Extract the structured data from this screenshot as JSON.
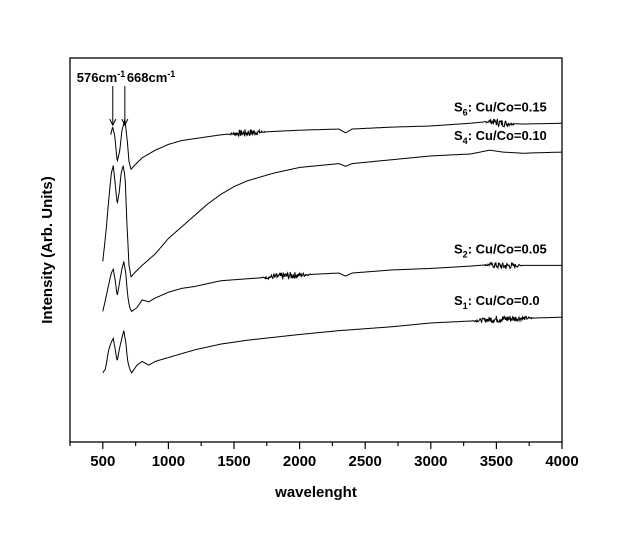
{
  "chart_data": {
    "type": "line",
    "title": "",
    "xlabel": "wavelenght",
    "ylabel": "Intensity (Arb. Units)",
    "xlim": [
      250,
      4000
    ],
    "ylim": [
      0,
      1
    ],
    "x_ticks": [
      500,
      1000,
      1500,
      2000,
      2500,
      3000,
      3500,
      4000
    ],
    "x_tick_labels": [
      "500",
      "1000",
      "1500",
      "2000",
      "2500",
      "3000",
      "3500",
      "4000"
    ],
    "y_ticks_visible": false,
    "grid": false,
    "annotations": [
      {
        "id": "peak1",
        "text": "576cm",
        "sup": "-1",
        "x": 576
      },
      {
        "id": "peak2",
        "text": "668cm",
        "sup": "-1",
        "x": 668
      }
    ],
    "series": [
      {
        "name": "S6: Cu/Co=0.15",
        "label_main": "S",
        "label_sub": "6",
        "label_rest": ": Cu/Co=0.15",
        "points": [
          [
            560,
            0.8
          ],
          [
            575,
            0.82
          ],
          [
            590,
            0.8
          ],
          [
            610,
            0.73
          ],
          [
            630,
            0.76
          ],
          [
            645,
            0.81
          ],
          [
            668,
            0.84
          ],
          [
            685,
            0.79
          ],
          [
            700,
            0.73
          ],
          [
            715,
            0.71
          ],
          [
            740,
            0.72
          ],
          [
            800,
            0.74
          ],
          [
            900,
            0.76
          ],
          [
            1000,
            0.775
          ],
          [
            1100,
            0.785
          ],
          [
            1200,
            0.79
          ],
          [
            1300,
            0.795
          ],
          [
            1400,
            0.8
          ],
          [
            1500,
            0.803
          ],
          [
            1700,
            0.807
          ],
          [
            2000,
            0.812
          ],
          [
            2300,
            0.815
          ],
          [
            2350,
            0.805
          ],
          [
            2400,
            0.815
          ],
          [
            2700,
            0.82
          ],
          [
            3000,
            0.823
          ],
          [
            3300,
            0.83
          ],
          [
            3450,
            0.835
          ],
          [
            3550,
            0.83
          ],
          [
            3700,
            0.828
          ],
          [
            4000,
            0.83
          ]
        ],
        "noise": [
          [
            1450,
            1750
          ],
          [
            3400,
            3650
          ]
        ]
      },
      {
        "name": "S4: Cu/Co=0.10",
        "label_main": "S",
        "label_sub": "4",
        "label_rest": ": Cu/Co=0.10",
        "points": [
          [
            500,
            0.47
          ],
          [
            525,
            0.55
          ],
          [
            545,
            0.63
          ],
          [
            565,
            0.7
          ],
          [
            580,
            0.72
          ],
          [
            595,
            0.67
          ],
          [
            610,
            0.62
          ],
          [
            625,
            0.65
          ],
          [
            640,
            0.7
          ],
          [
            655,
            0.72
          ],
          [
            670,
            0.69
          ],
          [
            685,
            0.56
          ],
          [
            700,
            0.46
          ],
          [
            715,
            0.43
          ],
          [
            740,
            0.44
          ],
          [
            800,
            0.46
          ],
          [
            900,
            0.49
          ],
          [
            1000,
            0.53
          ],
          [
            1100,
            0.56
          ],
          [
            1200,
            0.59
          ],
          [
            1300,
            0.62
          ],
          [
            1400,
            0.645
          ],
          [
            1500,
            0.665
          ],
          [
            1600,
            0.68
          ],
          [
            1800,
            0.7
          ],
          [
            2000,
            0.715
          ],
          [
            2300,
            0.725
          ],
          [
            2350,
            0.718
          ],
          [
            2400,
            0.725
          ],
          [
            2700,
            0.735
          ],
          [
            3000,
            0.745
          ],
          [
            3300,
            0.75
          ],
          [
            3450,
            0.76
          ],
          [
            3550,
            0.755
          ],
          [
            3700,
            0.752
          ],
          [
            4000,
            0.755
          ]
        ]
      },
      {
        "name": "S2: Cu/Co=0.05",
        "label_main": "S",
        "label_sub": "2",
        "label_rest": ": Cu/Co=0.05",
        "points": [
          [
            500,
            0.34
          ],
          [
            520,
            0.37
          ],
          [
            545,
            0.41
          ],
          [
            565,
            0.44
          ],
          [
            580,
            0.45
          ],
          [
            595,
            0.42
          ],
          [
            610,
            0.38
          ],
          [
            625,
            0.41
          ],
          [
            645,
            0.45
          ],
          [
            660,
            0.47
          ],
          [
            675,
            0.44
          ],
          [
            690,
            0.38
          ],
          [
            705,
            0.35
          ],
          [
            720,
            0.34
          ],
          [
            760,
            0.35
          ],
          [
            800,
            0.37
          ],
          [
            850,
            0.365
          ],
          [
            900,
            0.375
          ],
          [
            1000,
            0.39
          ],
          [
            1100,
            0.4
          ],
          [
            1200,
            0.405
          ],
          [
            1400,
            0.42
          ],
          [
            1600,
            0.425
          ],
          [
            2000,
            0.435
          ],
          [
            2300,
            0.44
          ],
          [
            2350,
            0.432
          ],
          [
            2400,
            0.44
          ],
          [
            2700,
            0.448
          ],
          [
            3000,
            0.452
          ],
          [
            3300,
            0.458
          ],
          [
            3450,
            0.462
          ],
          [
            3550,
            0.458
          ],
          [
            3700,
            0.46
          ],
          [
            4000,
            0.46
          ]
        ],
        "noise": [
          [
            1700,
            2100
          ],
          [
            3400,
            3700
          ]
        ]
      },
      {
        "name": "S1: Cu/Co=0.0",
        "label_main": "S",
        "label_sub": "1",
        "label_rest": ": Cu/Co=0.0",
        "points": [
          [
            500,
            0.18
          ],
          [
            520,
            0.19
          ],
          [
            545,
            0.24
          ],
          [
            565,
            0.26
          ],
          [
            580,
            0.27
          ],
          [
            595,
            0.24
          ],
          [
            610,
            0.21
          ],
          [
            625,
            0.24
          ],
          [
            645,
            0.27
          ],
          [
            660,
            0.29
          ],
          [
            675,
            0.26
          ],
          [
            690,
            0.21
          ],
          [
            705,
            0.19
          ],
          [
            720,
            0.18
          ],
          [
            760,
            0.2
          ],
          [
            800,
            0.21
          ],
          [
            850,
            0.2
          ],
          [
            900,
            0.21
          ],
          [
            1000,
            0.22
          ],
          [
            1100,
            0.23
          ],
          [
            1200,
            0.24
          ],
          [
            1400,
            0.255
          ],
          [
            1600,
            0.265
          ],
          [
            2000,
            0.28
          ],
          [
            2300,
            0.29
          ],
          [
            2700,
            0.3
          ],
          [
            3000,
            0.31
          ],
          [
            3300,
            0.315
          ],
          [
            3500,
            0.32
          ],
          [
            3700,
            0.322
          ],
          [
            4000,
            0.325
          ]
        ],
        "noise": [
          [
            3300,
            3800
          ]
        ]
      }
    ]
  }
}
